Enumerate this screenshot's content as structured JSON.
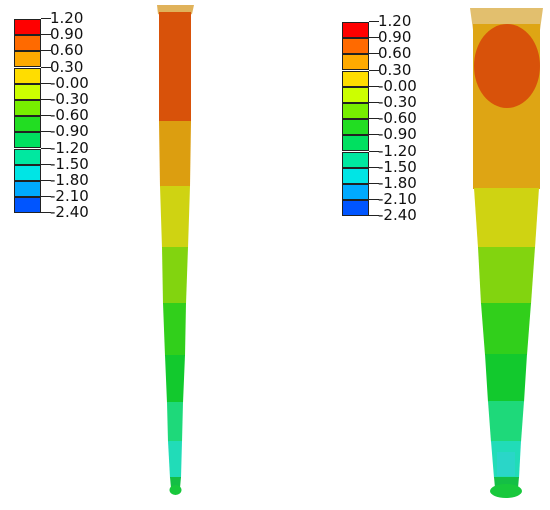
{
  "legend": {
    "labels": [
      "1.20",
      "0.90",
      "0.60",
      "0.30",
      "-0.00",
      "-0.30",
      "-0.60",
      "-0.90",
      "-1.20",
      "-1.50",
      "-1.80",
      "-2.10",
      "-2.40"
    ],
    "colors": [
      "#ff0000",
      "#ff6a00",
      "#ffaa00",
      "#ffdd00",
      "#ccff00",
      "#77ee00",
      "#22dd22",
      "#00e060",
      "#00e8a0",
      "#00e5e5",
      "#00aaff",
      "#0055ff",
      "#0000ff"
    ]
  },
  "specimens": [
    {
      "name": "left-specimen",
      "bands": [
        "#d95a08",
        "#dc9e10",
        "#cfd312",
        "#82d40f",
        "#31cf1b",
        "#12c92d",
        "#1ed97a",
        "#21dcb8",
        "#14bf45"
      ]
    },
    {
      "name": "right-specimen",
      "bands": [
        "#dea514",
        "#dba012",
        "#cfd312",
        "#82d40f",
        "#31cf1b",
        "#12c92d",
        "#1ed97a",
        "#21dcb8",
        "#14bf45"
      ]
    }
  ],
  "colors": {
    "head_orange": "#d8520a",
    "cap_tan": "#e2bf6e"
  }
}
